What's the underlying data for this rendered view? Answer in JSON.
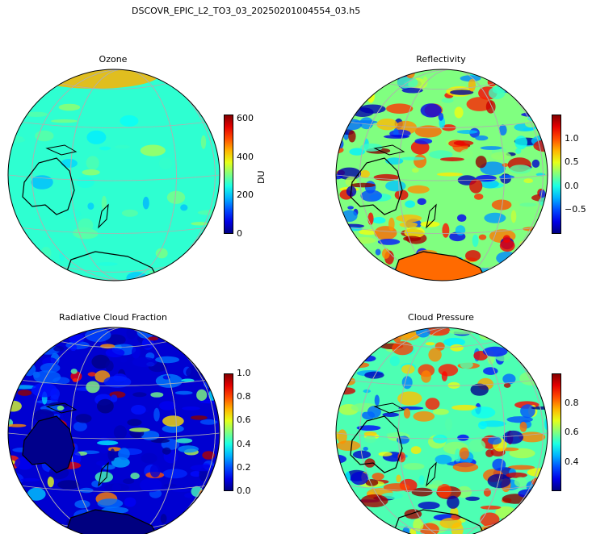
{
  "figure": {
    "title": "DSCOVR_EPIC_L2_TO3_03_20250201004554_03.h5"
  },
  "colors": {
    "coastline": "#000000",
    "gridline": "#b0b0b0",
    "cmap": "jet"
  },
  "chart_data": [
    {
      "type": "heatmap",
      "title": "Ozone",
      "projection": "orthographic",
      "colorbar": {
        "range": [
          0,
          620
        ],
        "ticks": [
          "0",
          "200",
          "400",
          "600"
        ],
        "label": "DU"
      },
      "dominant_level": 0.42
    },
    {
      "type": "heatmap",
      "title": "Reflectivity",
      "projection": "orthographic",
      "colorbar": {
        "range": [
          -1.0,
          1.5
        ],
        "ticks": [
          "−0.5",
          "0.0",
          "0.5",
          "1.0"
        ],
        "label": ""
      },
      "dominant_level": 0.5
    },
    {
      "type": "heatmap",
      "title": "Radiative Cloud Fraction",
      "projection": "orthographic",
      "colorbar": {
        "range": [
          0.0,
          1.0
        ],
        "ticks": [
          "0.0",
          "0.2",
          "0.4",
          "0.6",
          "0.8",
          "1.0"
        ],
        "label": ""
      },
      "dominant_level": 0.08
    },
    {
      "type": "heatmap",
      "title": "Cloud Pressure",
      "projection": "orthographic",
      "colorbar": {
        "range": [
          0.2,
          1.0
        ],
        "ticks": [
          "0.4",
          "0.6",
          "0.8"
        ],
        "label": ""
      },
      "dominant_level": 0.45
    }
  ]
}
